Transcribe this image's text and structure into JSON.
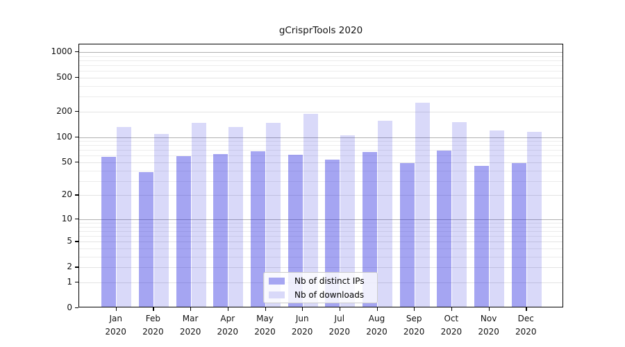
{
  "chart_data": {
    "type": "bar",
    "title": "gCrisprTools 2020",
    "categories": [
      "Jan",
      "Feb",
      "Mar",
      "Apr",
      "May",
      "Jun",
      "Jul",
      "Aug",
      "Sep",
      "Oct",
      "Nov",
      "Dec"
    ],
    "year_label": "2020",
    "series": [
      {
        "name": "Nb of distinct IPs",
        "key": "distinct-ips",
        "bar_color": "rgba(30,30,222,0.40)",
        "legend_color": "#a6a6f2",
        "values": [
          56,
          37,
          57,
          60,
          65,
          59,
          52,
          64,
          47,
          66,
          44,
          47
        ]
      },
      {
        "name": "Nb of downloads",
        "key": "downloads",
        "bar_color": "rgba(30,30,222,0.17)",
        "legend_color": "#d9d9f9",
        "values": [
          126,
          104,
          141,
          127,
          142,
          180,
          102,
          151,
          245,
          144,
          115,
          112
        ]
      }
    ],
    "y_ticks": [
      0,
      1,
      2,
      5,
      10,
      20,
      50,
      100,
      200,
      500,
      1000
    ],
    "y_scale": "log1p",
    "ylim": [
      0,
      1200
    ],
    "grid": true,
    "legend_position": "lower center",
    "axis_color": "#000000",
    "major_grid_color": "#b0b0b0",
    "minor_grid_color": "#ececec"
  }
}
